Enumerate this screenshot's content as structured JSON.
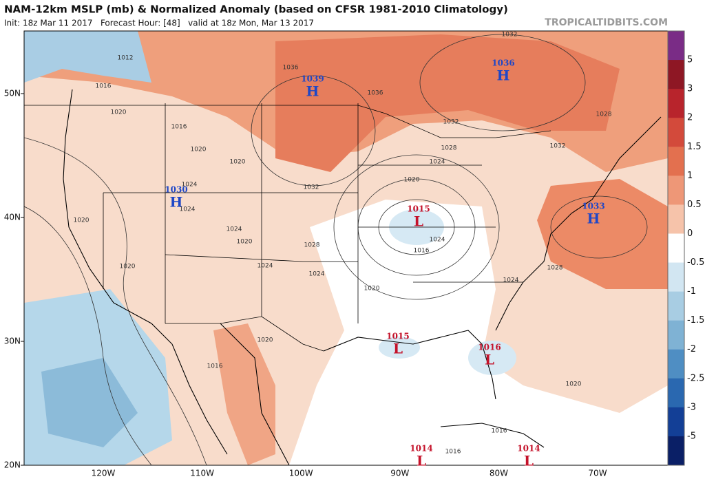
{
  "header": {
    "title": "NAM-12km MSLP (mb) & Normalized Anomaly (based on CFSR 1981-2010 Climatology)",
    "subtitle": "Init: 18z Mar 11 2017   Forecast Hour: [48]   valid at 18z Mon, Mar 13 2017",
    "credit": "TROPICALTIDBITS.COM"
  },
  "map": {
    "lat_labels": [
      "50N",
      "40N",
      "30N",
      "20N"
    ],
    "lon_labels": [
      "120W",
      "110W",
      "100W",
      "90W",
      "80W",
      "70W"
    ],
    "centers": [
      {
        "letter": "H",
        "value": "1039"
      },
      {
        "letter": "H",
        "value": "1036"
      },
      {
        "letter": "H",
        "value": "1030"
      },
      {
        "letter": "H",
        "value": "1033"
      },
      {
        "letter": "L",
        "value": "1015"
      },
      {
        "letter": "L",
        "value": "1015"
      },
      {
        "letter": "L",
        "value": "1016"
      },
      {
        "letter": "L",
        "value": "1014"
      },
      {
        "letter": "L",
        "value": "1014"
      }
    ],
    "contour_labels": [
      "1012",
      "1016",
      "1036",
      "1036",
      "1032",
      "1020",
      "1016",
      "1020",
      "1020",
      "1024",
      "1024",
      "1020",
      "1024",
      "1020",
      "1020",
      "1024",
      "1024",
      "1028",
      "1032",
      "1032",
      "1028",
      "1024",
      "1020",
      "1024",
      "1016",
      "1020",
      "1028",
      "1032",
      "1028",
      "1024",
      "1020",
      "1016",
      "1020",
      "1016",
      "1016"
    ]
  },
  "colorbar": {
    "labels": [
      "5",
      "3",
      "2",
      "1.5",
      "1",
      "0.5",
      "0",
      "-0.5",
      "-1",
      "-1.5",
      "-2",
      "-2.5",
      "-3",
      "-5"
    ]
  }
}
